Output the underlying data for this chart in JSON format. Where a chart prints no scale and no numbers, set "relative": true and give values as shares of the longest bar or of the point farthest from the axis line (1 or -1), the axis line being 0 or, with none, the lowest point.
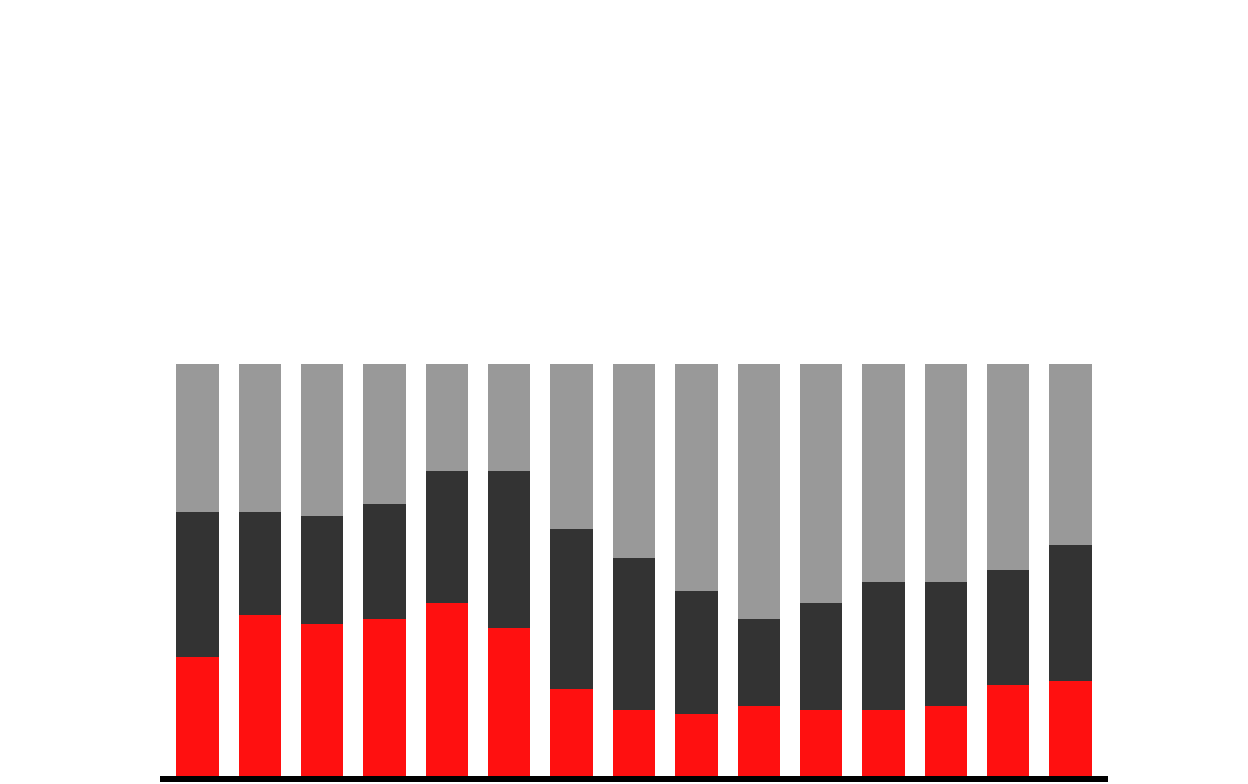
{
  "chart_data": {
    "type": "bar",
    "stacked": true,
    "relative": true,
    "categories": [
      null,
      null,
      null,
      null,
      null,
      null,
      null,
      null,
      null,
      null,
      null,
      null,
      null,
      null,
      null
    ],
    "series": [
      {
        "color": "#ff1010",
        "values": [
          0.29,
          0.39,
          0.37,
          0.38,
          0.42,
          0.36,
          0.21,
          0.16,
          0.15,
          0.17,
          0.16,
          0.16,
          0.17,
          0.22,
          0.23
        ]
      },
      {
        "color": "#333333",
        "values": [
          0.35,
          0.25,
          0.26,
          0.28,
          0.32,
          0.38,
          0.39,
          0.37,
          0.3,
          0.21,
          0.26,
          0.31,
          0.3,
          0.28,
          0.33
        ]
      },
      {
        "color": "#999999",
        "values": [
          0.36,
          0.36,
          0.37,
          0.34,
          0.26,
          0.26,
          0.4,
          0.47,
          0.55,
          0.62,
          0.58,
          0.53,
          0.53,
          0.5,
          0.44
        ]
      }
    ]
  }
}
